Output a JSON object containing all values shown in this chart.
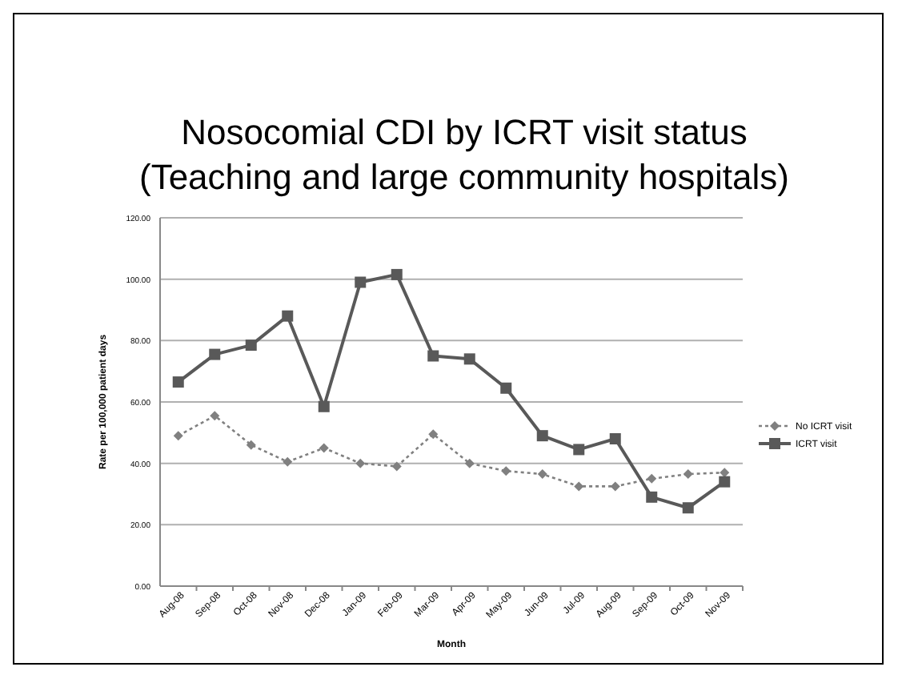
{
  "chart_data": {
    "type": "line",
    "title": "Nosocomial CDI by ICRT visit status",
    "subtitle": "(Teaching and large community hospitals)",
    "xlabel": "Month",
    "ylabel": "Rate per 100,000 patient days",
    "categories": [
      "Aug-08",
      "Sep-08",
      "Oct-08",
      "Nov-08",
      "Dec-08",
      "Jan-09",
      "Feb-09",
      "Mar-09",
      "Apr-09",
      "May-09",
      "Jun-09",
      "Jul-09",
      "Aug-09",
      "Sep-09",
      "Oct-09",
      "Nov-09"
    ],
    "series": [
      {
        "name": "No ICRT visit",
        "color": "#808080",
        "marker": "diamond",
        "line_style": "dotted",
        "values": [
          49,
          55.5,
          46,
          40.5,
          45,
          40,
          39,
          49.5,
          40,
          37.5,
          36.5,
          32.5,
          32.5,
          35,
          36.5,
          37
        ]
      },
      {
        "name": "ICRT visit",
        "color": "#595959",
        "marker": "square",
        "line_style": "solid",
        "values": [
          66.5,
          75.5,
          78.5,
          88,
          58.5,
          99,
          101.5,
          75,
          74,
          64.5,
          49,
          44.5,
          48,
          29,
          25.5,
          34
        ]
      }
    ],
    "ylim": [
      0,
      120
    ],
    "yticks": [
      {
        "value": 0,
        "label": "0.00"
      },
      {
        "value": 20,
        "label": "20.00"
      },
      {
        "value": 40,
        "label": "40.00"
      },
      {
        "value": 60,
        "label": "60.00"
      },
      {
        "value": 80,
        "label": "80.00"
      },
      {
        "value": 100,
        "label": "100.00"
      },
      {
        "value": 120,
        "label": "120.00"
      }
    ],
    "grid": "y",
    "legend": "right"
  }
}
